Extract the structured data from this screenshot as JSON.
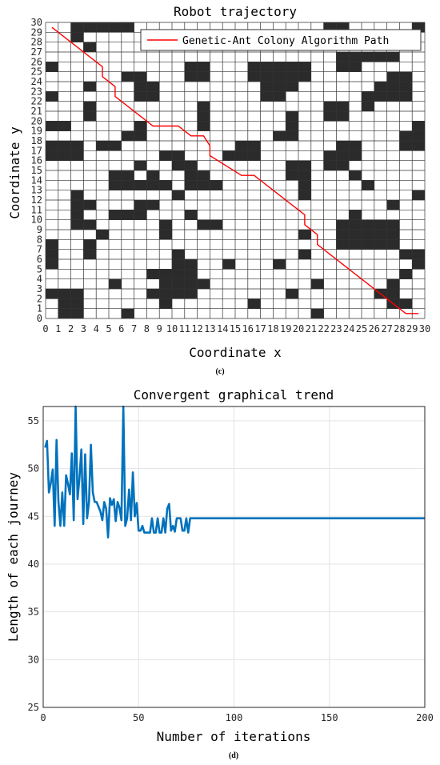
{
  "panel_c_caption": "(c)",
  "panel_d_caption": "(d)",
  "chart_data": [
    {
      "type": "scatter",
      "title": "Robot trajectory",
      "xlabel": "Coordinate x",
      "ylabel": "Coordinate y",
      "xlim": [
        0,
        30
      ],
      "ylim": [
        0,
        30
      ],
      "grid": true,
      "legend": {
        "position": "top-right",
        "entries": [
          "Genetic-Ant Colony Algorithm Path"
        ]
      },
      "x_ticks": [
        "0",
        "1",
        "2",
        "3",
        "4",
        "5",
        "6",
        "7",
        "8",
        "9",
        "10",
        "11",
        "12",
        "13",
        "14",
        "15",
        "16",
        "17",
        "18",
        "19",
        "20",
        "21",
        "22",
        "23",
        "24",
        "25",
        "26",
        "27",
        "28",
        "29",
        "30"
      ],
      "y_ticks": [
        "0",
        "1",
        "2",
        "3",
        "4",
        "5",
        "6",
        "7",
        "8",
        "9",
        "10",
        "11",
        "12",
        "13",
        "14",
        "15",
        "16",
        "17",
        "18",
        "19",
        "20",
        "21",
        "22",
        "23",
        "24",
        "25",
        "26",
        "27",
        "28",
        "29",
        "30"
      ],
      "obstacle_color": "#2b2b2b",
      "path_color": "#ff0000",
      "obstacles": [
        [
          2,
          29
        ],
        [
          3,
          29
        ],
        [
          4,
          29
        ],
        [
          5,
          29
        ],
        [
          6,
          29
        ],
        [
          22,
          29
        ],
        [
          23,
          29
        ],
        [
          29,
          29
        ],
        [
          2,
          28
        ],
        [
          3,
          27
        ],
        [
          23,
          26
        ],
        [
          24,
          26
        ],
        [
          25,
          26
        ],
        [
          26,
          26
        ],
        [
          27,
          26
        ],
        [
          0,
          25
        ],
        [
          11,
          25
        ],
        [
          12,
          25
        ],
        [
          16,
          25
        ],
        [
          17,
          25
        ],
        [
          18,
          25
        ],
        [
          19,
          25
        ],
        [
          20,
          25
        ],
        [
          23,
          25
        ],
        [
          24,
          25
        ],
        [
          6,
          24
        ],
        [
          7,
          24
        ],
        [
          11,
          24
        ],
        [
          12,
          24
        ],
        [
          16,
          24
        ],
        [
          17,
          24
        ],
        [
          18,
          24
        ],
        [
          19,
          24
        ],
        [
          20,
          24
        ],
        [
          27,
          24
        ],
        [
          28,
          24
        ],
        [
          3,
          23
        ],
        [
          7,
          23
        ],
        [
          8,
          23
        ],
        [
          17,
          23
        ],
        [
          18,
          23
        ],
        [
          19,
          23
        ],
        [
          26,
          23
        ],
        [
          27,
          23
        ],
        [
          28,
          23
        ],
        [
          0,
          22
        ],
        [
          7,
          22
        ],
        [
          8,
          22
        ],
        [
          17,
          22
        ],
        [
          18,
          22
        ],
        [
          25,
          22
        ],
        [
          26,
          22
        ],
        [
          27,
          22
        ],
        [
          28,
          22
        ],
        [
          3,
          21
        ],
        [
          12,
          21
        ],
        [
          22,
          21
        ],
        [
          23,
          21
        ],
        [
          25,
          21
        ],
        [
          3,
          20
        ],
        [
          12,
          20
        ],
        [
          19,
          20
        ],
        [
          22,
          20
        ],
        [
          23,
          20
        ],
        [
          0,
          19
        ],
        [
          1,
          19
        ],
        [
          7,
          19
        ],
        [
          12,
          19
        ],
        [
          19,
          19
        ],
        [
          29,
          19
        ],
        [
          6,
          18
        ],
        [
          7,
          18
        ],
        [
          18,
          18
        ],
        [
          19,
          18
        ],
        [
          28,
          18
        ],
        [
          29,
          18
        ],
        [
          0,
          17
        ],
        [
          1,
          17
        ],
        [
          2,
          17
        ],
        [
          4,
          17
        ],
        [
          5,
          17
        ],
        [
          15,
          17
        ],
        [
          16,
          17
        ],
        [
          23,
          17
        ],
        [
          24,
          17
        ],
        [
          28,
          17
        ],
        [
          29,
          17
        ],
        [
          0,
          16
        ],
        [
          1,
          16
        ],
        [
          2,
          16
        ],
        [
          9,
          16
        ],
        [
          10,
          16
        ],
        [
          14,
          16
        ],
        [
          15,
          16
        ],
        [
          16,
          16
        ],
        [
          22,
          16
        ],
        [
          23,
          16
        ],
        [
          24,
          16
        ],
        [
          7,
          15
        ],
        [
          10,
          15
        ],
        [
          11,
          15
        ],
        [
          19,
          15
        ],
        [
          20,
          15
        ],
        [
          22,
          15
        ],
        [
          23,
          15
        ],
        [
          5,
          14
        ],
        [
          6,
          14
        ],
        [
          8,
          14
        ],
        [
          11,
          14
        ],
        [
          12,
          14
        ],
        [
          19,
          14
        ],
        [
          20,
          14
        ],
        [
          24,
          14
        ],
        [
          5,
          13
        ],
        [
          6,
          13
        ],
        [
          7,
          13
        ],
        [
          8,
          13
        ],
        [
          9,
          13
        ],
        [
          11,
          13
        ],
        [
          12,
          13
        ],
        [
          13,
          13
        ],
        [
          20,
          13
        ],
        [
          25,
          13
        ],
        [
          2,
          12
        ],
        [
          10,
          12
        ],
        [
          20,
          12
        ],
        [
          29,
          12
        ],
        [
          2,
          11
        ],
        [
          3,
          11
        ],
        [
          7,
          11
        ],
        [
          8,
          11
        ],
        [
          27,
          11
        ],
        [
          2,
          10
        ],
        [
          5,
          10
        ],
        [
          6,
          10
        ],
        [
          7,
          10
        ],
        [
          11,
          10
        ],
        [
          24,
          10
        ],
        [
          2,
          9
        ],
        [
          3,
          9
        ],
        [
          9,
          9
        ],
        [
          12,
          9
        ],
        [
          13,
          9
        ],
        [
          23,
          9
        ],
        [
          24,
          9
        ],
        [
          25,
          9
        ],
        [
          26,
          9
        ],
        [
          27,
          9
        ],
        [
          4,
          8
        ],
        [
          9,
          8
        ],
        [
          20,
          8
        ],
        [
          23,
          8
        ],
        [
          24,
          8
        ],
        [
          25,
          8
        ],
        [
          26,
          8
        ],
        [
          27,
          8
        ],
        [
          0,
          7
        ],
        [
          3,
          7
        ],
        [
          23,
          7
        ],
        [
          24,
          7
        ],
        [
          25,
          7
        ],
        [
          26,
          7
        ],
        [
          27,
          7
        ],
        [
          0,
          6
        ],
        [
          3,
          6
        ],
        [
          10,
          6
        ],
        [
          20,
          6
        ],
        [
          28,
          6
        ],
        [
          29,
          6
        ],
        [
          0,
          5
        ],
        [
          10,
          5
        ],
        [
          11,
          5
        ],
        [
          14,
          5
        ],
        [
          18,
          5
        ],
        [
          29,
          5
        ],
        [
          8,
          4
        ],
        [
          9,
          4
        ],
        [
          10,
          4
        ],
        [
          11,
          4
        ],
        [
          28,
          4
        ],
        [
          5,
          3
        ],
        [
          9,
          3
        ],
        [
          10,
          3
        ],
        [
          11,
          3
        ],
        [
          12,
          3
        ],
        [
          21,
          3
        ],
        [
          27,
          3
        ],
        [
          0,
          2
        ],
        [
          1,
          2
        ],
        [
          2,
          2
        ],
        [
          8,
          2
        ],
        [
          9,
          2
        ],
        [
          10,
          2
        ],
        [
          11,
          2
        ],
        [
          19,
          2
        ],
        [
          26,
          2
        ],
        [
          27,
          2
        ],
        [
          1,
          1
        ],
        [
          2,
          1
        ],
        [
          9,
          1
        ],
        [
          16,
          1
        ],
        [
          27,
          1
        ],
        [
          28,
          1
        ],
        [
          1,
          0
        ],
        [
          2,
          0
        ],
        [
          6,
          0
        ],
        [
          21,
          0
        ]
      ],
      "series": [
        {
          "name": "Genetic-Ant Colony Algorithm Path",
          "x": [
            0.5,
            4.5,
            4.5,
            5.5,
            5.5,
            8.5,
            10.5,
            11.5,
            12.5,
            13.0,
            13.0,
            15.5,
            16.5,
            20.5,
            20.5,
            21.5,
            21.5,
            28.5,
            29.5
          ],
          "y": [
            29.5,
            25.5,
            24.5,
            23.5,
            22.5,
            19.5,
            19.5,
            18.5,
            18.5,
            17.5,
            16.5,
            14.5,
            14.5,
            10.5,
            9.5,
            8.5,
            7.5,
            0.5,
            0.5
          ]
        }
      ]
    },
    {
      "type": "line",
      "title": "Convergent graphical trend",
      "xlabel": "Number of iterations",
      "ylabel": "Length of each journey",
      "xlim": [
        0,
        200
      ],
      "ylim": [
        25,
        56.5
      ],
      "x_ticks": [
        0,
        50,
        100,
        150,
        200
      ],
      "y_ticks": [
        25,
        30,
        35,
        40,
        45,
        50,
        55
      ],
      "grid": true,
      "line_color": "#0072bd",
      "series": [
        {
          "x": [
            1,
            2,
            3,
            4,
            5,
            6,
            7,
            8,
            9,
            10,
            11,
            12,
            13,
            14,
            15,
            16,
            17,
            18,
            19,
            20,
            21,
            22,
            23,
            24,
            25,
            26,
            27,
            28,
            29,
            30,
            31,
            32,
            33,
            34,
            35,
            36,
            37,
            38,
            39,
            40,
            41,
            42,
            43,
            44,
            45,
            46,
            47,
            48,
            49,
            50,
            51,
            52,
            53,
            54,
            55,
            56,
            57,
            58,
            59,
            60,
            61,
            62,
            63,
            64,
            65,
            66,
            67,
            68,
            69,
            70,
            71,
            72,
            73,
            74,
            75,
            76,
            77,
            78,
            79,
            80,
            81,
            82,
            83,
            84,
            85,
            86,
            100,
            150,
            200
          ],
          "y": [
            52.2,
            52.9,
            47.5,
            48.5,
            49.9,
            44.0,
            53.0,
            46.5,
            44.0,
            47.5,
            44.0,
            49.3,
            48.4,
            47.3,
            51.6,
            44.6,
            56.5,
            46.8,
            49.0,
            52.0,
            44.2,
            51.5,
            44.8,
            46.5,
            52.5,
            47.5,
            46.5,
            46.5,
            46.0,
            45.5,
            44.6,
            46.5,
            45.8,
            42.8,
            46.9,
            46.2,
            46.8,
            44.5,
            46.5,
            45.9,
            44.6,
            56.5,
            44.0,
            44.8,
            47.8,
            44.6,
            49.6,
            45.0,
            46.4,
            43.5,
            43.5,
            44.0,
            43.3,
            43.3,
            43.3,
            43.3,
            44.8,
            43.3,
            43.3,
            44.8,
            43.3,
            43.3,
            44.8,
            43.3,
            45.8,
            46.3,
            43.5,
            44.0,
            43.4,
            44.8,
            44.8,
            44.8,
            43.5,
            43.5,
            44.8,
            43.3,
            44.8,
            44.8,
            44.8,
            44.8,
            44.8,
            44.8,
            44.8,
            44.8,
            44.8,
            44.8,
            44.8,
            44.8,
            44.8
          ]
        }
      ]
    }
  ]
}
